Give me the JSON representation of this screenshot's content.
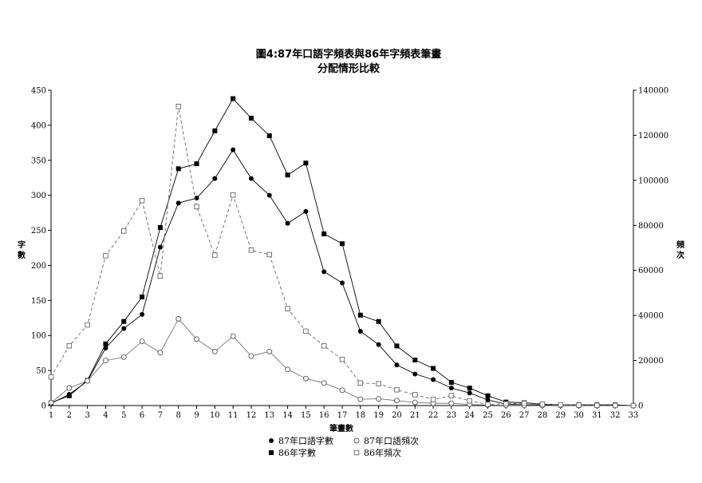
{
  "chart_data": {
    "type": "line",
    "title": "圖4:87年口語字頻表與86年字頻表筆畫",
    "subtitle": "分配情形比較",
    "xlabel": "筆畫數",
    "ylabel_left": "字數",
    "ylabel_right": "頻次",
    "x": [
      1,
      2,
      3,
      4,
      5,
      6,
      7,
      8,
      9,
      10,
      11,
      12,
      13,
      14,
      15,
      16,
      17,
      18,
      19,
      20,
      21,
      22,
      23,
      24,
      25,
      26,
      27,
      28,
      29,
      30,
      31,
      32,
      33
    ],
    "xlim": [
      1,
      33
    ],
    "ylim_left": [
      0,
      450
    ],
    "ylim_right": [
      0,
      140000
    ],
    "yticks_left": [
      0,
      50,
      100,
      150,
      200,
      250,
      300,
      350,
      400,
      450
    ],
    "yticks_right": [
      0,
      20000,
      40000,
      60000,
      80000,
      100000,
      120000,
      140000
    ],
    "grid": false,
    "legend_position": "bottom-center",
    "series": [
      {
        "name": "87年口語字數",
        "axis": "left",
        "marker": "filled-circle",
        "line": "solid",
        "values": [
          3,
          16,
          35,
          82,
          110,
          130,
          226,
          289,
          296,
          324,
          365,
          324,
          300,
          260,
          277,
          191,
          175,
          106,
          87,
          58,
          45,
          37,
          25,
          18,
          8,
          2,
          1,
          1,
          0,
          0,
          0,
          0,
          0
        ]
      },
      {
        "name": "86年字數",
        "axis": "left",
        "marker": "filled-square",
        "line": "solid",
        "values": [
          4,
          14,
          36,
          88,
          120,
          155,
          254,
          338,
          345,
          392,
          438,
          410,
          385,
          329,
          346,
          245,
          231,
          129,
          120,
          85,
          65,
          53,
          33,
          25,
          14,
          5,
          4,
          2,
          1,
          1,
          1,
          1,
          0
        ]
      },
      {
        "name": "87年口語頻次",
        "axis": "right",
        "marker": "open-circle",
        "line": "solid-thin",
        "values": [
          1300,
          7800,
          11000,
          20000,
          21500,
          28500,
          23500,
          38500,
          29500,
          24000,
          30800,
          22000,
          24000,
          16000,
          12000,
          10000,
          6800,
          2800,
          3000,
          2200,
          1400,
          1000,
          1000,
          500,
          200,
          100,
          80,
          50,
          30,
          20,
          10,
          5,
          0
        ]
      },
      {
        "name": "86年頻次",
        "axis": "right",
        "marker": "open-square",
        "line": "dashed",
        "values": [
          12700,
          26500,
          35800,
          66500,
          77500,
          91000,
          57500,
          132800,
          88300,
          66800,
          93500,
          69000,
          67000,
          43000,
          33000,
          26500,
          20500,
          10000,
          9700,
          7000,
          4800,
          2700,
          4400,
          2100,
          500,
          800,
          1000,
          600,
          300,
          200,
          100,
          50,
          0
        ]
      }
    ]
  }
}
